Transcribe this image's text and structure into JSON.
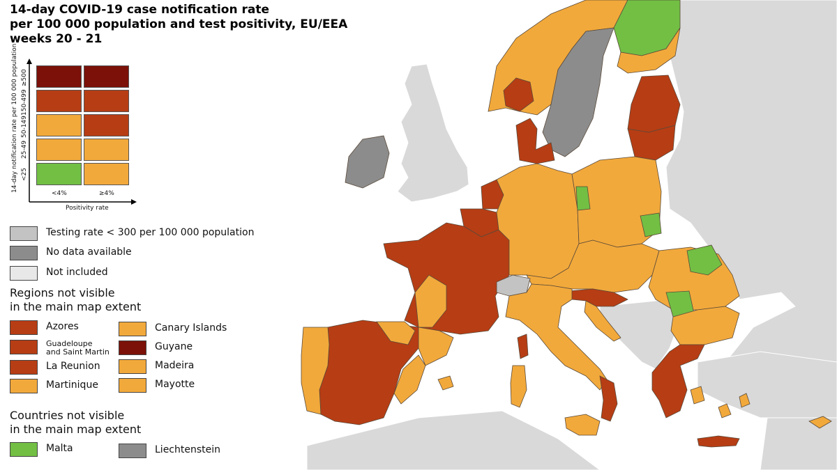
{
  "title": {
    "line1": "14-day COVID-19 case notification rate",
    "line2": "per 100 000 population and test positivity, EU/EEA",
    "line3": "weeks 20 - 21"
  },
  "colors": {
    "sea": "#ffffff",
    "non_eu_land": "#d9d9d9",
    "dark_red": "#7b1109",
    "red": "#b73d14",
    "orange": "#f2a93b",
    "green": "#72bf44",
    "no_data": "#8c8c8c",
    "testing_low": "#c3c3c3",
    "not_included": "#e8e8e8",
    "border": "#5a4a3a"
  },
  "matrix": {
    "y_axis_label": "14-day notification rate per 100 000 population",
    "rows": [
      "≥500",
      "150-499",
      "50-149",
      "25-49",
      "<25"
    ],
    "x_labels": [
      "<4%",
      "≥4%"
    ],
    "x_axis_label": "Positivity rate",
    "cells": [
      [
        "dark_red",
        "dark_red"
      ],
      [
        "red",
        "red"
      ],
      [
        "orange",
        "red"
      ],
      [
        "orange",
        "orange"
      ],
      [
        "green",
        "orange"
      ]
    ]
  },
  "legend": {
    "testing": "Testing rate < 300 per 100 000 population",
    "no_data": "No data available",
    "not_included": "Not included"
  },
  "regions": {
    "heading_line1": "Regions not visible",
    "heading_line2": "in the main map extent",
    "items": [
      {
        "label": "Azores",
        "color": "red"
      },
      {
        "label": "Canary Islands",
        "color": "orange"
      },
      {
        "label_line1": "Guadeloupe",
        "label_line2": "and Saint Martin",
        "color": "red"
      },
      {
        "label": "Guyane",
        "color": "dark_red"
      },
      {
        "label": "La Reunion",
        "color": "red"
      },
      {
        "label": "Madeira",
        "color": "orange"
      },
      {
        "label": "Martinique",
        "color": "orange"
      },
      {
        "label": "Mayotte",
        "color": "orange"
      }
    ]
  },
  "countries": {
    "heading_line1": "Countries not visible",
    "heading_line2": "in the main map extent",
    "items": [
      {
        "label": "Malta",
        "color": "green"
      },
      {
        "label": "Liechtenstein",
        "color": "no_data"
      }
    ]
  },
  "map_regions": [
    {
      "name": "norway",
      "color": "orange"
    },
    {
      "name": "norway-south-red",
      "color": "red"
    },
    {
      "name": "sweden",
      "color": "no_data"
    },
    {
      "name": "finland-north",
      "color": "green"
    },
    {
      "name": "finland-south",
      "color": "orange"
    },
    {
      "name": "estonia-latvia",
      "color": "red"
    },
    {
      "name": "lithuania",
      "color": "red"
    },
    {
      "name": "denmark",
      "color": "red"
    },
    {
      "name": "ireland",
      "color": "no_data"
    },
    {
      "name": "netherlands",
      "color": "red"
    },
    {
      "name": "belgium",
      "color": "red"
    },
    {
      "name": "france",
      "color": "red"
    },
    {
      "name": "france-southwest",
      "color": "orange"
    },
    {
      "name": "germany",
      "color": "orange"
    },
    {
      "name": "poland",
      "color": "orange"
    },
    {
      "name": "poland-green-west",
      "color": "green"
    },
    {
      "name": "poland-green-east",
      "color": "green"
    },
    {
      "name": "czechia-austria-slovakia-hungary",
      "color": "orange"
    },
    {
      "name": "slovenia-croatia-north",
      "color": "red"
    },
    {
      "name": "croatia-coast",
      "color": "orange"
    },
    {
      "name": "switzerland",
      "color": "testing_low"
    },
    {
      "name": "italy",
      "color": "orange"
    },
    {
      "name": "italy-south-red",
      "color": "red"
    },
    {
      "name": "sicily",
      "color": "orange"
    },
    {
      "name": "sardinia",
      "color": "orange"
    },
    {
      "name": "corsica",
      "color": "red"
    },
    {
      "name": "romania",
      "color": "orange"
    },
    {
      "name": "romania-green-north",
      "color": "green"
    },
    {
      "name": "romania-green-center",
      "color": "green"
    },
    {
      "name": "bulgaria",
      "color": "orange"
    },
    {
      "name": "greece",
      "color": "red"
    },
    {
      "name": "greece-islands",
      "color": "orange"
    },
    {
      "name": "crete",
      "color": "red"
    },
    {
      "name": "cyprus",
      "color": "orange"
    },
    {
      "name": "spain",
      "color": "red"
    },
    {
      "name": "spain-north",
      "color": "orange"
    },
    {
      "name": "spain-catalonia",
      "color": "orange"
    },
    {
      "name": "spain-east-coast",
      "color": "orange"
    },
    {
      "name": "portugal",
      "color": "orange"
    },
    {
      "name": "balearics",
      "color": "orange"
    }
  ]
}
